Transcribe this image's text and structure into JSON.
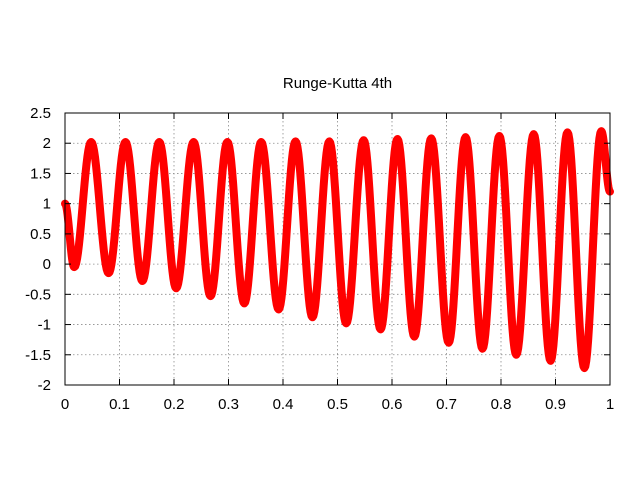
{
  "chart_data": {
    "type": "line",
    "title": "Runge-Kutta 4th",
    "xlabel": "",
    "ylabel": "",
    "xlim": [
      0,
      1
    ],
    "ylim": [
      -2,
      2.5
    ],
    "x_ticks": [
      "0",
      "0.1",
      "0.2",
      "0.3",
      "0.4",
      "0.5",
      "0.6",
      "0.7",
      "0.8",
      "0.9",
      "1"
    ],
    "y_ticks": [
      "2.5",
      "2",
      "1.5",
      "1",
      "0.5",
      "0",
      "-0.5",
      "-1",
      "-1.5",
      "-2"
    ],
    "grid": true,
    "legend": "none",
    "color": "#ff0000",
    "series": [
      {
        "x": [
          0,
          0.017,
          0.048,
          0.08,
          0.111,
          0.142,
          0.173,
          0.204,
          0.236,
          0.267,
          0.298,
          0.329,
          0.36,
          0.392,
          0.423,
          0.454,
          0.485,
          0.516,
          0.548,
          0.579,
          0.61,
          0.641,
          0.672,
          0.704,
          0.735,
          0.766,
          0.797,
          0.828,
          0.86,
          0.891,
          0.922,
          0.953,
          0.984,
          1.0
        ],
        "y": [
          1,
          -0.05,
          2.02,
          -0.15,
          2.02,
          -0.28,
          2.02,
          -0.4,
          2.02,
          -0.53,
          2.02,
          -0.65,
          2.02,
          -0.75,
          2.03,
          -0.88,
          2.03,
          -0.98,
          2.05,
          -1.08,
          2.07,
          -1.2,
          2.08,
          -1.3,
          2.1,
          -1.4,
          2.12,
          -1.5,
          2.15,
          -1.6,
          2.18,
          -1.72,
          2.2,
          1.2
        ]
      }
    ]
  }
}
